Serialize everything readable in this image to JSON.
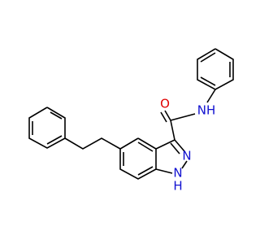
{
  "atoms": {
    "oxygen": "O",
    "amide_nh": "NH",
    "n2": "N",
    "n1": "N",
    "n1_h": "H"
  }
}
